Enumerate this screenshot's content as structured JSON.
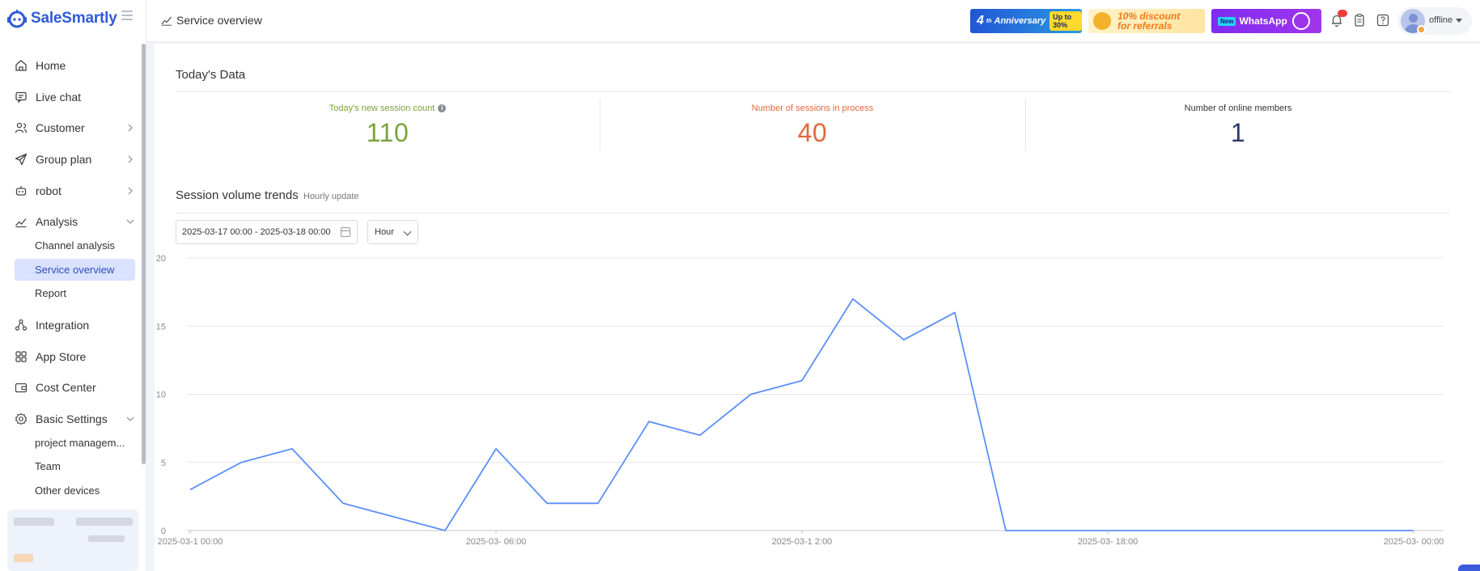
{
  "app": {
    "brand": "SaleSmartly"
  },
  "sidebar": {
    "items": [
      {
        "label": "Home",
        "icon": "home-icon"
      },
      {
        "label": "Live chat",
        "icon": "chat-icon"
      },
      {
        "label": "Customer",
        "icon": "users-icon",
        "expandable": true
      },
      {
        "label": "Group plan",
        "icon": "send-icon",
        "expandable": true
      },
      {
        "label": "robot",
        "icon": "robot-icon",
        "expandable": true
      },
      {
        "label": "Analysis",
        "icon": "analysis-icon",
        "expanded": true
      }
    ],
    "analysis_sub": [
      "Channel analysis",
      "Service overview",
      "Report"
    ],
    "items_after": [
      {
        "label": "Integration",
        "icon": "integration-icon"
      },
      {
        "label": "App Store",
        "icon": "app-store-icon"
      },
      {
        "label": "Cost Center",
        "icon": "wallet-icon"
      },
      {
        "label": "Basic Settings",
        "icon": "settings-icon",
        "expanded": true
      }
    ],
    "settings_sub": [
      "project managem...",
      "Team",
      "Other devices"
    ],
    "active_item": "Service overview"
  },
  "header": {
    "page_title": "Service overview",
    "banners": {
      "anniversary_big": "4",
      "anniversary_sup": "th",
      "anniversary_text": "Anniversary",
      "anniversary_badge": "Up to 30%",
      "discount_line1": "10% discount",
      "discount_line2": "for referrals",
      "wa_new": "New",
      "wa_text": "WhatsApp"
    },
    "status": "offline"
  },
  "today": {
    "title": "Today's Data",
    "stats": [
      {
        "label": "Today's new session count",
        "value": "110",
        "color": "#7aa33a",
        "info": true
      },
      {
        "label": "Number of sessions in process",
        "value": "40",
        "color": "#e2683a"
      },
      {
        "label": "Number of online members",
        "value": "1",
        "color": "#2d3a66"
      }
    ]
  },
  "trends": {
    "title": "Session volume trends",
    "hint": "Hourly update",
    "date_range": "2025-03-17 00:00 - 2025-03-18 00:00",
    "granularity": "Hour"
  },
  "chart_data": {
    "type": "line",
    "ylim": [
      0,
      20
    ],
    "yticks": [
      0,
      5,
      10,
      15,
      20
    ],
    "xtick_labels": [
      "2025-03-1  00:00",
      "2025-03-  06:00",
      "2025-03-1  2:00",
      "2025-03-  18:00",
      "2025-03-  00:00"
    ],
    "series": [
      {
        "color": "#5b8ff9",
        "values": [
          3,
          5,
          6,
          2,
          1,
          0,
          6,
          2,
          2,
          8,
          7,
          10,
          11,
          17,
          14,
          16,
          0,
          0,
          0,
          0,
          0,
          0,
          0,
          0,
          0
        ]
      }
    ]
  }
}
